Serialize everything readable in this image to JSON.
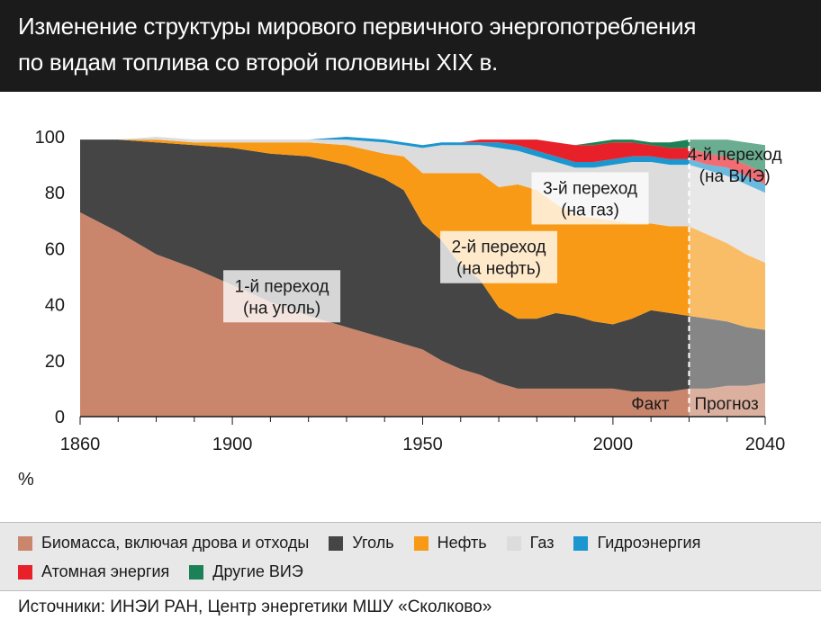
{
  "title": {
    "line1": "Изменение структуры мирового первичного энергопотребления",
    "line2": "по видам топлива со второй половины XIX в."
  },
  "unit": "%",
  "source": "Источники: ИНЭИ РАН, Центр энергетики МШУ «Сколково»",
  "colors": {
    "biomass": "#c9866c",
    "coal": "#454545",
    "oil": "#f89a16",
    "gas": "#dcdcdc",
    "hydro": "#1b96cf",
    "nuclear": "#e8202a",
    "renewables": "#1b8257",
    "forecast_overlay": "#ffffff"
  },
  "legend": [
    {
      "label": "Биомасса, включая дрова и отходы",
      "color": "#c9866c"
    },
    {
      "label": "Уголь",
      "color": "#454545"
    },
    {
      "label": "Нефть",
      "color": "#f89a16"
    },
    {
      "label": "Газ",
      "color": "#dcdcdc"
    },
    {
      "label": "Гидроэнергия",
      "color": "#1b96cf"
    },
    {
      "label": "Атомная энергия",
      "color": "#e8202a"
    },
    {
      "label": "Другие ВИЭ",
      "color": "#1b8257"
    }
  ],
  "chart_data": {
    "type": "area",
    "stacked": true,
    "x": [
      1860,
      1870,
      1880,
      1890,
      1900,
      1910,
      1920,
      1930,
      1940,
      1945,
      1950,
      1955,
      1960,
      1965,
      1970,
      1975,
      1980,
      1985,
      1990,
      1995,
      2000,
      2005,
      2010,
      2015,
      2020,
      2025,
      2030,
      2035,
      2040
    ],
    "series": [
      {
        "name": "Биомасса, включая дрова и отходы",
        "values": [
          73,
          66,
          58,
          53,
          47,
          41,
          36,
          32,
          28,
          26,
          24,
          20,
          17,
          15,
          12,
          10,
          10,
          10,
          10,
          10,
          10,
          9,
          9,
          9,
          10,
          10,
          11,
          11,
          12
        ]
      },
      {
        "name": "Уголь",
        "values": [
          26,
          33,
          40,
          44,
          49,
          53,
          57,
          58,
          57,
          55,
          45,
          43,
          37,
          34,
          27,
          25,
          25,
          27,
          26,
          24,
          23,
          26,
          29,
          28,
          26,
          25,
          23,
          21,
          19
        ]
      },
      {
        "name": "Нефть",
        "values": [
          0,
          0,
          1,
          1,
          2,
          4,
          5,
          7,
          9,
          12,
          18,
          24,
          33,
          38,
          43,
          48,
          46,
          39,
          36,
          37,
          37,
          34,
          31,
          31,
          32,
          30,
          28,
          26,
          24
        ]
      },
      {
        "name": "Газ",
        "values": [
          0,
          0,
          1,
          1,
          1,
          1,
          1,
          2,
          4,
          4,
          9,
          10,
          10,
          10,
          14,
          12,
          12,
          15,
          17,
          18,
          20,
          22,
          22,
          22,
          22,
          23,
          24,
          25,
          25
        ]
      },
      {
        "name": "Гидроэнергия",
        "values": [
          0,
          0,
          0,
          0,
          0,
          0,
          0,
          1,
          1,
          1,
          1,
          1,
          1,
          1,
          2,
          2,
          2,
          2,
          2,
          2,
          2,
          2,
          2,
          2,
          2,
          2,
          3,
          3,
          3
        ]
      },
      {
        "name": "Атомная энергия",
        "values": [
          0,
          0,
          0,
          0,
          0,
          0,
          0,
          0,
          0,
          0,
          0,
          0,
          0,
          1,
          1,
          2,
          4,
          5,
          6,
          6,
          6,
          5,
          4,
          4,
          4,
          4,
          4,
          4,
          4
        ]
      },
      {
        "name": "Другие ВИЭ",
        "values": [
          0,
          0,
          0,
          0,
          0,
          0,
          0,
          0,
          0,
          0,
          0,
          0,
          0,
          0,
          0,
          0,
          0,
          0,
          0,
          1,
          1,
          1,
          1,
          2,
          3,
          5,
          6,
          8,
          10
        ]
      }
    ],
    "xlim": [
      1860,
      2040
    ],
    "ylim": [
      0,
      100
    ],
    "yticks": [
      0,
      20,
      40,
      60,
      80,
      100
    ],
    "xticks": [
      1860,
      1900,
      1950,
      2000,
      2040
    ],
    "forecast_start": 2020,
    "annotations": [
      {
        "line1": "1-й переход",
        "line2": "(на уголь)",
        "x": 1913,
        "y": 43
      },
      {
        "line1": "2-й переход",
        "line2": "(на нефть)",
        "x": 1970,
        "y": 57
      },
      {
        "line1": "3-й переход",
        "line2": "(на газ)",
        "x": 1994,
        "y": 78
      },
      {
        "line1": "4-й переход",
        "line2": "(на ВИЭ)",
        "x": 2032,
        "y": 90
      }
    ],
    "period_labels": {
      "fact": "Факт",
      "forecast": "Прогноз"
    }
  }
}
